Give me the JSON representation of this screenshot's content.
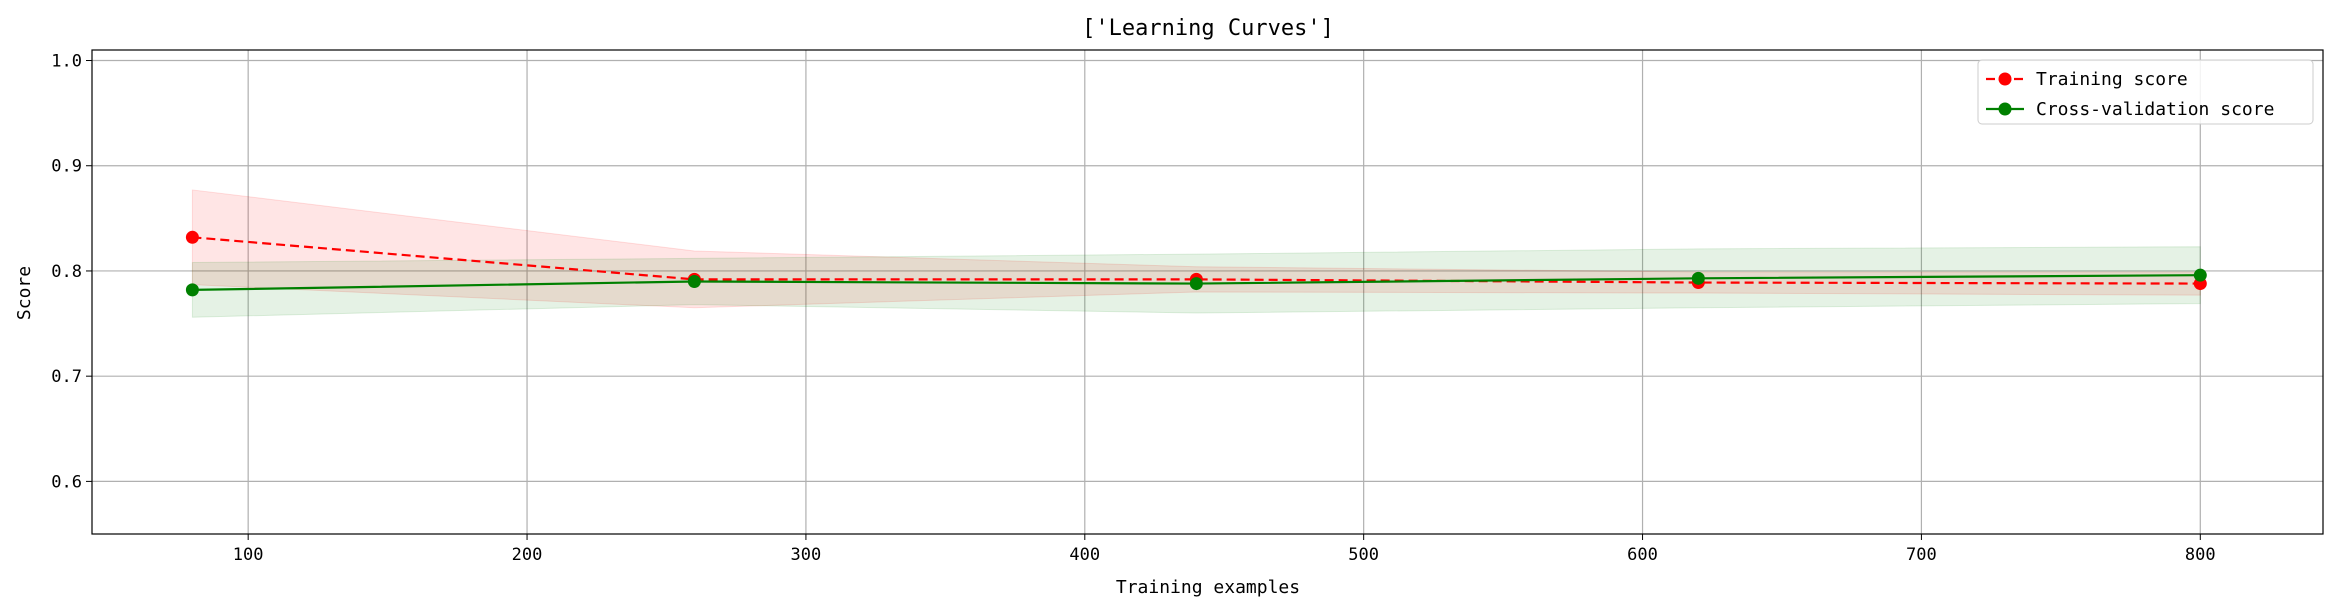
{
  "chart_data": {
    "type": "line",
    "title": "['Learning Curves']",
    "xlabel": "Training examples",
    "ylabel": "Score",
    "xlim": [
      44,
      844
    ],
    "ylim": [
      0.55,
      1.01
    ],
    "xticks": [
      100,
      200,
      300,
      400,
      500,
      600,
      700,
      800
    ],
    "yticks": [
      0.6,
      0.7,
      0.8,
      0.9,
      1.0
    ],
    "ytick_labels": [
      "0.6",
      "0.7",
      "0.8",
      "0.9",
      "1.0"
    ],
    "grid": true,
    "legend_position": "upper-right",
    "x": [
      80,
      260,
      440,
      620,
      800
    ],
    "series": [
      {
        "name": "Training score",
        "values": [
          0.832,
          0.792,
          0.792,
          0.789,
          0.788
        ],
        "band_lower": [
          0.787,
          0.765,
          0.78,
          0.779,
          0.777
        ],
        "band_upper": [
          0.877,
          0.819,
          0.804,
          0.799,
          0.799
        ],
        "color": "#ff0000",
        "band_color": "#ff0000",
        "line_style": "dashed"
      },
      {
        "name": "Cross-validation score",
        "values": [
          0.782,
          0.79,
          0.788,
          0.793,
          0.796
        ],
        "band_lower": [
          0.756,
          0.768,
          0.76,
          0.765,
          0.769
        ],
        "band_upper": [
          0.808,
          0.812,
          0.816,
          0.821,
          0.823
        ],
        "color": "#008000",
        "band_color": "#008000",
        "line_style": "solid"
      }
    ]
  }
}
